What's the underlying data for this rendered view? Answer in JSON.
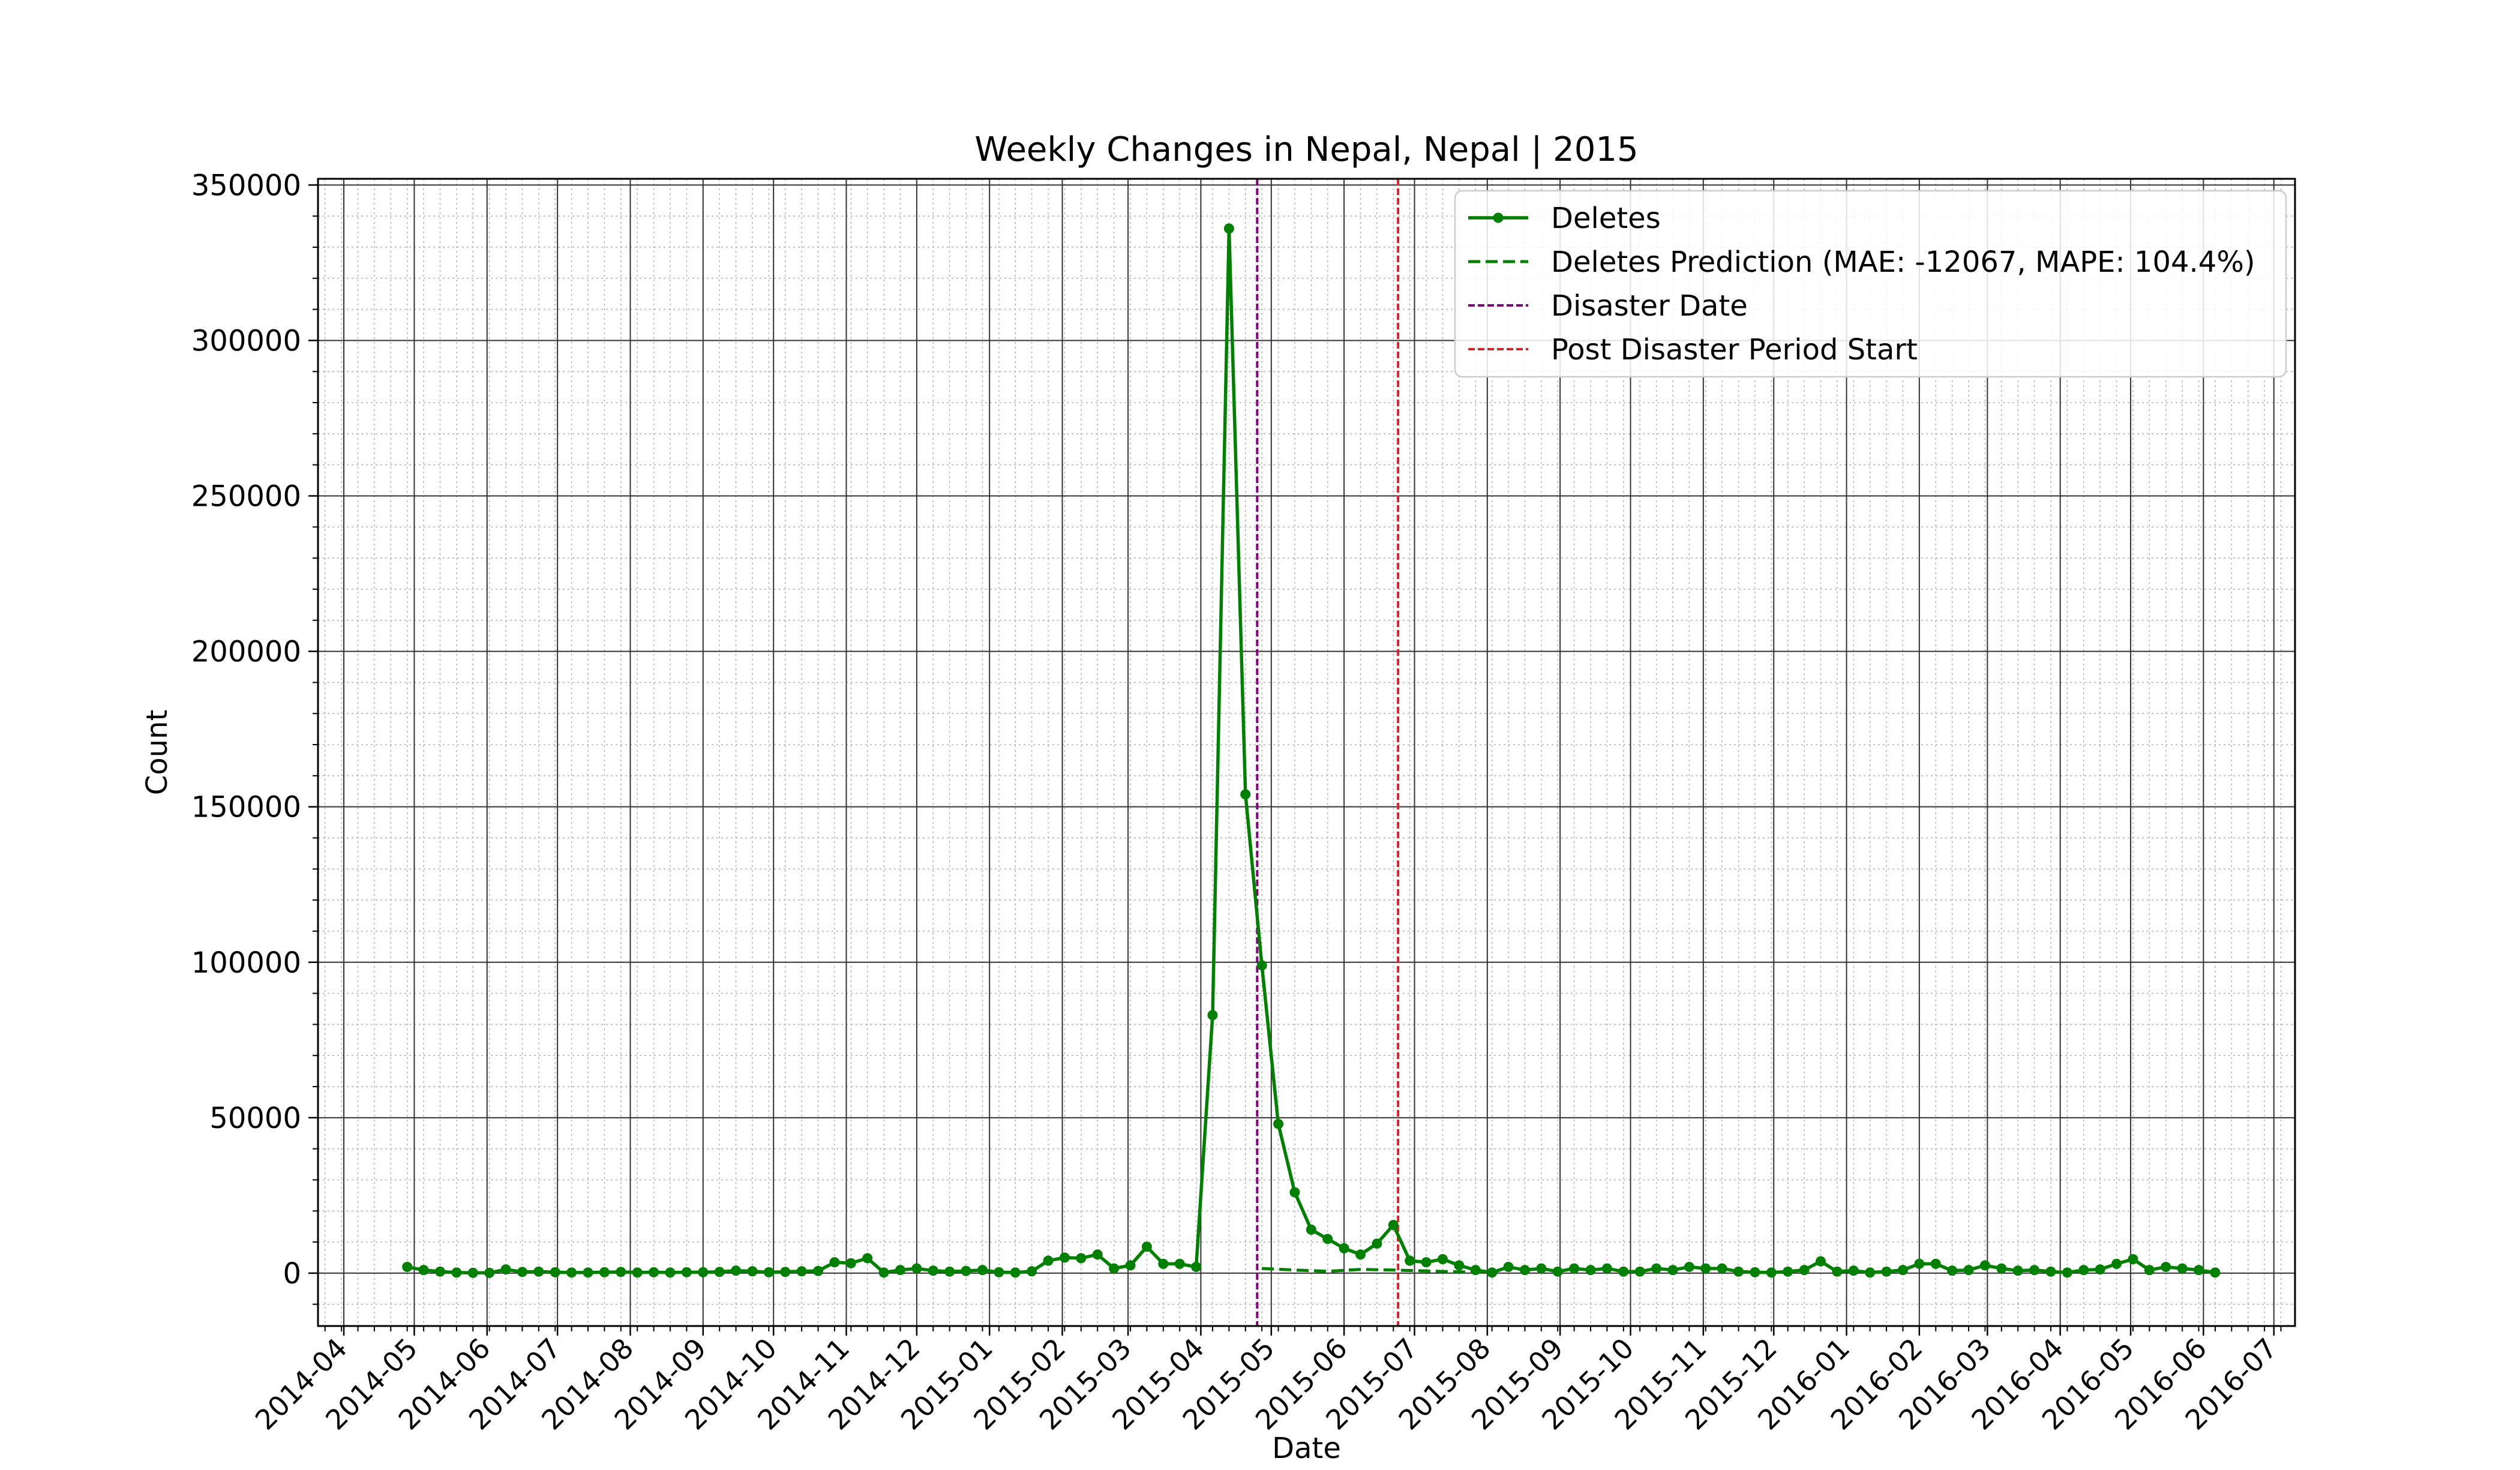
{
  "chart_data": {
    "type": "line",
    "title": "Weekly Changes in Nepal, Nepal | 2015",
    "xlabel": "Date",
    "ylabel": "Count",
    "ylim": [
      -17000,
      352000
    ],
    "xlim": [
      "2014-03-21",
      "2016-07-10"
    ],
    "grid": true,
    "legend_position": "top-right",
    "y_ticks": [
      0,
      50000,
      100000,
      150000,
      200000,
      250000,
      300000,
      350000
    ],
    "y_tick_labels": [
      "0",
      "50000",
      "100000",
      "150000",
      "200000",
      "250000",
      "300000",
      "350000"
    ],
    "x_ticks": [
      "2014-04-01",
      "2014-05-01",
      "2014-06-01",
      "2014-07-01",
      "2014-08-01",
      "2014-09-01",
      "2014-10-01",
      "2014-11-01",
      "2014-12-01",
      "2015-01-01",
      "2015-02-01",
      "2015-03-01",
      "2015-04-01",
      "2015-05-01",
      "2015-06-01",
      "2015-07-01",
      "2015-08-01",
      "2015-09-01",
      "2015-10-01",
      "2015-11-01",
      "2015-12-01",
      "2016-01-01",
      "2016-02-01",
      "2016-03-01",
      "2016-04-01",
      "2016-05-01",
      "2016-06-01",
      "2016-07-01"
    ],
    "x_tick_labels": [
      "2014-04",
      "2014-05",
      "2014-06",
      "2014-07",
      "2014-08",
      "2014-09",
      "2014-10",
      "2014-11",
      "2014-12",
      "2015-01",
      "2015-02",
      "2015-03",
      "2015-04",
      "2015-05",
      "2015-06",
      "2015-07",
      "2015-08",
      "2015-09",
      "2015-10",
      "2015-11",
      "2015-12",
      "2016-01",
      "2016-02",
      "2016-03",
      "2016-04",
      "2016-05",
      "2016-06",
      "2016-07"
    ],
    "disaster_date": "2015-04-25",
    "post_disaster_start": "2015-06-24",
    "series": [
      {
        "name": "Deletes",
        "color": "#008000",
        "style": "solid-marker",
        "start_date": "2014-04-28",
        "step_days": 7,
        "values": [
          2000,
          1000,
          500,
          200,
          100,
          100,
          1200,
          400,
          500,
          300,
          200,
          200,
          300,
          400,
          200,
          300,
          200,
          300,
          300,
          400,
          800,
          600,
          300,
          400,
          600,
          700,
          3500,
          3200,
          4800,
          200,
          1000,
          1500,
          800,
          500,
          700,
          1000,
          300,
          200,
          600,
          4000,
          5000,
          4800,
          6000,
          1500,
          2500,
          8500,
          3000,
          3000,
          2000,
          83000,
          336000,
          154000,
          99000,
          48000,
          26000,
          14000,
          11000,
          8000,
          6000,
          9500,
          15500,
          4000,
          3500,
          4500,
          2500,
          1000,
          200,
          2000,
          1000,
          1500,
          500,
          1500,
          1000,
          1500,
          500,
          500,
          1500,
          1000,
          2000,
          1500,
          1500,
          500,
          300,
          200,
          500,
          1000,
          3800,
          500,
          800,
          200,
          500,
          1000,
          3000,
          3000,
          800,
          1000,
          2500,
          1500,
          800,
          1000,
          500,
          200,
          1000,
          1200,
          3000,
          4500,
          1000,
          2000,
          1500,
          1000,
          200
        ]
      },
      {
        "name": "Deletes Prediction (MAE: -12067, MAPE: 104.4%)",
        "color": "#008000",
        "style": "dashed",
        "x": [
          "2015-04-27",
          "2015-05-11",
          "2015-05-25",
          "2015-06-08",
          "2015-06-22",
          "2015-07-06",
          "2015-07-20",
          "2015-08-03"
        ],
        "values": [
          1500,
          1000,
          600,
          1200,
          1000,
          700,
          400,
          300
        ]
      }
    ],
    "vlines": [
      {
        "name": "Disaster Date",
        "date": "2015-04-25",
        "color": "#800080"
      },
      {
        "name": "Post Disaster Period Start",
        "date": "2015-06-24",
        "color": "#d62728"
      }
    ],
    "legend": [
      {
        "label": "Deletes",
        "color": "#008000",
        "style": "solid-marker"
      },
      {
        "label": "Deletes Prediction (MAE: -12067, MAPE: 104.4%)",
        "color": "#008000",
        "style": "dashed"
      },
      {
        "label": "Disaster Date",
        "color": "#800080",
        "style": "dashed-thin"
      },
      {
        "label": "Post Disaster Period Start",
        "color": "#d62728",
        "style": "dashed-thin"
      }
    ]
  }
}
